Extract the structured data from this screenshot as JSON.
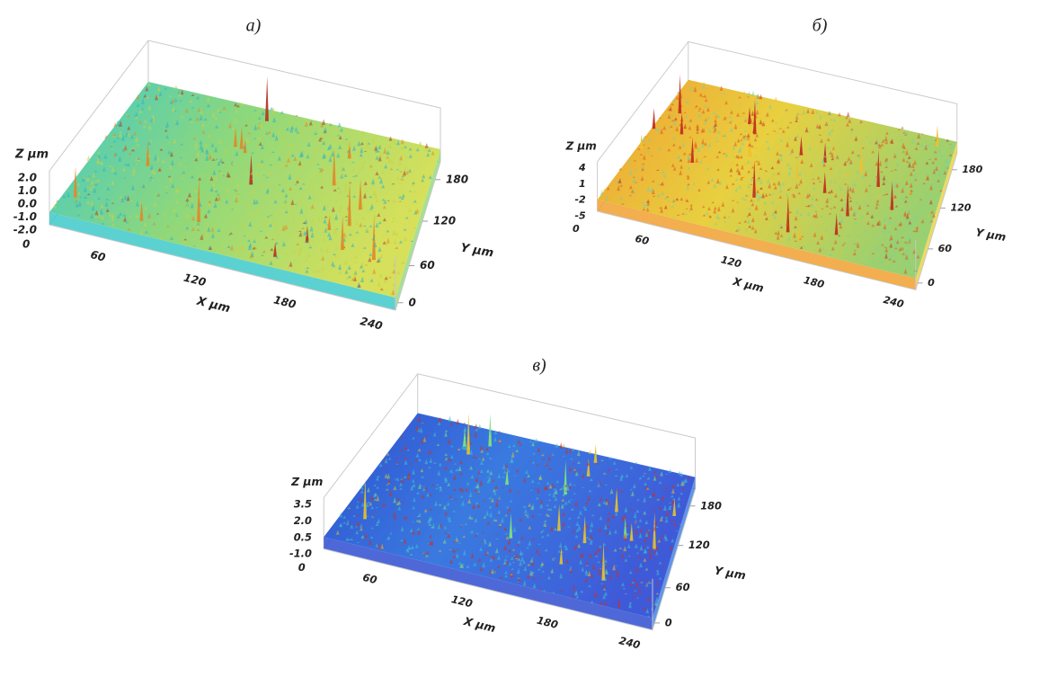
{
  "panels": [
    {
      "label": "а)",
      "z_title": "Z µm",
      "z_ticks": [
        "2.0",
        "1.0",
        "0.0",
        "-1.0",
        "-2.0"
      ],
      "origin_label": "0",
      "x_title": "X µm",
      "x_ticks": [
        "60",
        "120",
        "180",
        "240"
      ],
      "y_title": "Y µm",
      "y_ticks": [
        "0",
        "60",
        "120",
        "180"
      ]
    },
    {
      "label": "б)",
      "z_title": "Z µm",
      "z_ticks": [
        "4",
        "1",
        "-2",
        "-5"
      ],
      "origin_label": "0",
      "x_title": "X µm",
      "x_ticks": [
        "60",
        "120",
        "180",
        "240"
      ],
      "y_title": "Y µm",
      "y_ticks": [
        "0",
        "60",
        "120",
        "180"
      ]
    },
    {
      "label": "в)",
      "z_title": "Z µm",
      "z_ticks": [
        "3.5",
        "2.0",
        "0.5",
        "-1.0"
      ],
      "origin_label": "0",
      "x_title": "X µm",
      "x_ticks": [
        "60",
        "120",
        "180",
        "240"
      ],
      "y_title": "Y µm",
      "y_ticks": [
        "0",
        "60",
        "120",
        "180"
      ]
    }
  ]
}
